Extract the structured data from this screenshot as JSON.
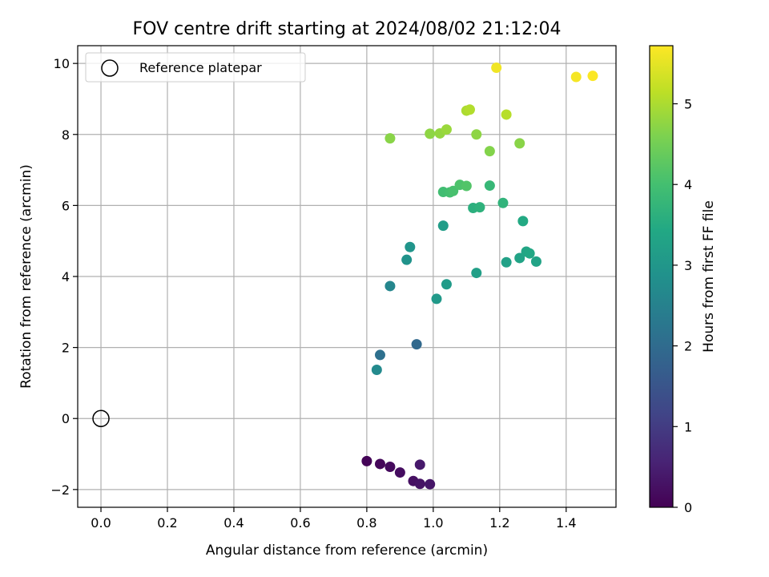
{
  "chart_data": {
    "type": "scatter",
    "title": "FOV centre drift starting at 2024/08/02 21:12:04",
    "xlabel": "Angular distance from reference (arcmin)",
    "ylabel": "Rotation from reference (arcmin)",
    "xlim": [
      -0.07,
      1.55
    ],
    "ylim": [
      -2.5,
      10.5
    ],
    "xticks": [
      0.0,
      0.2,
      0.4,
      0.6,
      0.8,
      1.0,
      1.2,
      1.4
    ],
    "xtick_labels": [
      "0.0",
      "0.2",
      "0.4",
      "0.6",
      "0.8",
      "1.0",
      "1.2",
      "1.4"
    ],
    "yticks": [
      -2,
      0,
      2,
      4,
      6,
      8,
      10
    ],
    "ytick_labels": [
      "−2",
      "0",
      "2",
      "4",
      "6",
      "8",
      "10"
    ],
    "grid": true,
    "legend": {
      "position": "top-left",
      "entries": [
        {
          "label": "Reference platepar",
          "marker": "open-circle"
        }
      ]
    },
    "reference_point": {
      "x": 0.0,
      "y": 0.0
    },
    "colorbar": {
      "label": "Hours from first FF file",
      "colormap": "viridis",
      "range": [
        0,
        5.72
      ],
      "ticks": [
        0,
        1,
        2,
        3,
        4,
        5
      ],
      "tick_labels": [
        "0",
        "1",
        "2",
        "3",
        "4",
        "5"
      ]
    },
    "points": [
      {
        "x": 0.8,
        "y": -1.2,
        "c": 0.05
      },
      {
        "x": 0.84,
        "y": -1.28,
        "c": 0.1
      },
      {
        "x": 0.87,
        "y": -1.36,
        "c": 0.15
      },
      {
        "x": 0.9,
        "y": -1.52,
        "c": 0.2
      },
      {
        "x": 0.94,
        "y": -1.76,
        "c": 0.25
      },
      {
        "x": 0.96,
        "y": -1.84,
        "c": 0.3
      },
      {
        "x": 0.99,
        "y": -1.85,
        "c": 0.35
      },
      {
        "x": 0.96,
        "y": -1.3,
        "c": 0.4
      },
      {
        "x": 0.95,
        "y": 2.09,
        "c": 1.95
      },
      {
        "x": 0.84,
        "y": 1.79,
        "c": 2.1
      },
      {
        "x": 0.83,
        "y": 1.37,
        "c": 2.7
      },
      {
        "x": 0.87,
        "y": 3.73,
        "c": 2.6
      },
      {
        "x": 0.92,
        "y": 4.47,
        "c": 2.9
      },
      {
        "x": 0.93,
        "y": 4.83,
        "c": 2.95
      },
      {
        "x": 1.01,
        "y": 3.37,
        "c": 3.05
      },
      {
        "x": 1.04,
        "y": 3.78,
        "c": 3.1
      },
      {
        "x": 1.03,
        "y": 5.43,
        "c": 3.15
      },
      {
        "x": 1.13,
        "y": 4.1,
        "c": 3.2
      },
      {
        "x": 1.22,
        "y": 4.4,
        "c": 3.25
      },
      {
        "x": 1.26,
        "y": 4.52,
        "c": 3.3
      },
      {
        "x": 1.28,
        "y": 4.7,
        "c": 3.35
      },
      {
        "x": 1.29,
        "y": 4.65,
        "c": 3.4
      },
      {
        "x": 1.31,
        "y": 4.42,
        "c": 3.3
      },
      {
        "x": 1.27,
        "y": 5.56,
        "c": 3.45
      },
      {
        "x": 1.12,
        "y": 5.93,
        "c": 3.6
      },
      {
        "x": 1.14,
        "y": 5.95,
        "c": 3.65
      },
      {
        "x": 1.21,
        "y": 6.07,
        "c": 3.7
      },
      {
        "x": 1.17,
        "y": 6.56,
        "c": 3.8
      },
      {
        "x": 1.03,
        "y": 6.38,
        "c": 3.95
      },
      {
        "x": 1.05,
        "y": 6.37,
        "c": 4.0
      },
      {
        "x": 1.06,
        "y": 6.41,
        "c": 4.05
      },
      {
        "x": 1.08,
        "y": 6.58,
        "c": 4.1
      },
      {
        "x": 1.1,
        "y": 6.55,
        "c": 4.15
      },
      {
        "x": 0.87,
        "y": 7.89,
        "c": 4.7
      },
      {
        "x": 0.99,
        "y": 8.02,
        "c": 4.75
      },
      {
        "x": 1.02,
        "y": 8.03,
        "c": 4.8
      },
      {
        "x": 1.04,
        "y": 8.14,
        "c": 4.85
      },
      {
        "x": 1.13,
        "y": 8.0,
        "c": 4.75
      },
      {
        "x": 1.17,
        "y": 7.53,
        "c": 4.65
      },
      {
        "x": 1.26,
        "y": 7.75,
        "c": 4.7
      },
      {
        "x": 1.1,
        "y": 8.67,
        "c": 5.0
      },
      {
        "x": 1.11,
        "y": 8.7,
        "c": 5.05
      },
      {
        "x": 1.22,
        "y": 8.56,
        "c": 5.1
      },
      {
        "x": 1.19,
        "y": 9.88,
        "c": 5.6
      },
      {
        "x": 1.43,
        "y": 9.62,
        "c": 5.65
      },
      {
        "x": 1.48,
        "y": 9.65,
        "c": 5.7
      }
    ]
  }
}
